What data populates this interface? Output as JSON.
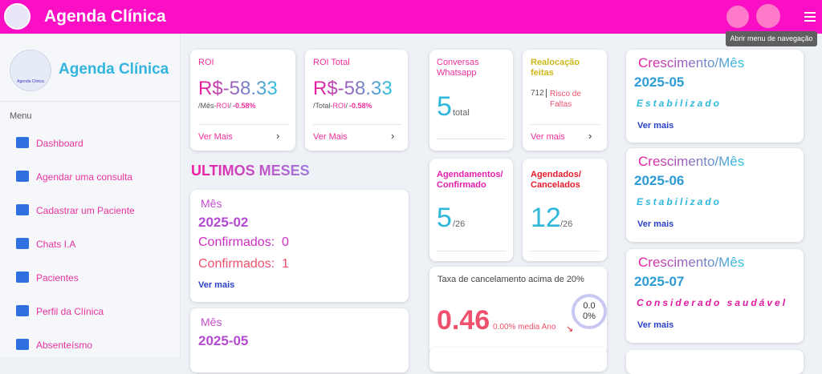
{
  "header": {
    "title": "Agenda Clínica",
    "tooltip": "Abrir menu de navegação"
  },
  "sidebar": {
    "logo_text": "Agenda Clinica",
    "title": "Agenda Clínica",
    "menu_label": "Menu",
    "items": [
      "Dashboard",
      "Agendar uma consulta",
      "Cadastrar um Paciente",
      "Chats I.A",
      "Pacientes",
      "Perfil da Clínica",
      "Absenteísmo"
    ]
  },
  "roi_cards": [
    {
      "label": "ROI",
      "value": "R$-58.33",
      "period": "/Mês-",
      "tag": "ROI",
      "sep": "/",
      "change": "-0.58%",
      "link": "Ver Mais"
    },
    {
      "label": "ROI Total",
      "value": "R$-58.33",
      "period": "/Total-",
      "tag": "ROI",
      "sep": "/",
      "change": "-0.58%",
      "link": "Ver Mais"
    }
  ],
  "section_title": "ULTIMOS MESES",
  "months": [
    {
      "label": "Mês",
      "month": "2025-02",
      "confirmed": "Confirmados:  0",
      "cancelled": "Confirmados:  1",
      "link": "Ver mais"
    },
    {
      "label": "Mês",
      "month": "2025-05"
    }
  ],
  "stats": {
    "conversas": {
      "title": "Conversas Whatsapp",
      "value": "5",
      "unit": "total"
    },
    "realocacao": {
      "title": "Realocação feitas",
      "count": "712",
      "risk": "Risco de Faltas",
      "link": "Ver mais"
    },
    "confirmados": {
      "title": "Agendamentos/ Confirmado",
      "value": "5",
      "total": "/26"
    },
    "cancelados": {
      "title": "Agendados/ Cancelados",
      "value": "12",
      "total": "/26"
    },
    "taxa": {
      "title": "Taxa de cancelamento acima de 20%",
      "value": "0.46",
      "note": "0.00% media Ano",
      "ring_top": "0.0",
      "ring_bottom": "0%"
    }
  },
  "growth": [
    {
      "title": "Crescimento/Mês",
      "month": "2025-05",
      "status": "Estabilizado",
      "link": "Ver mais"
    },
    {
      "title": "Crescimento/Mês",
      "month": "2025-06",
      "status": "Estabilizado",
      "link": "Ver mais"
    },
    {
      "title": "Crescimento/Mês",
      "month": "2025-07",
      "status": "Considerado saudável",
      "link": "Ver mais"
    }
  ]
}
